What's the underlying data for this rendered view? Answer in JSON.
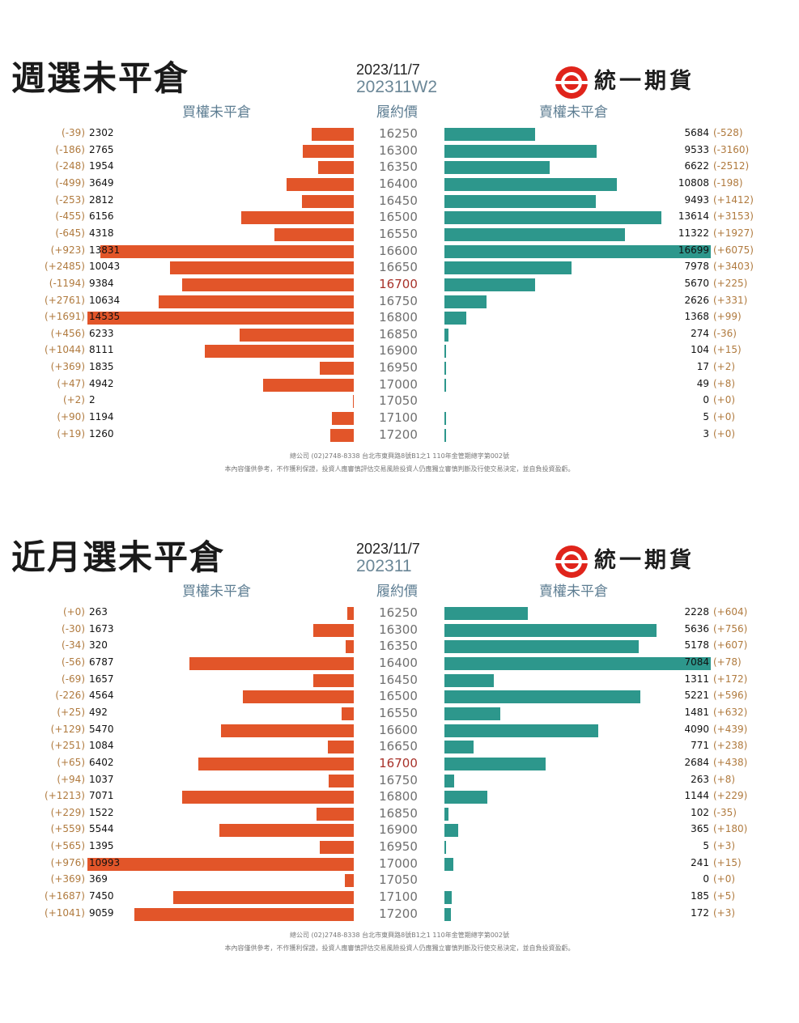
{
  "brand": {
    "name": "統一期貨",
    "accent": "#e0241b"
  },
  "colors": {
    "call_bar": "#e25529",
    "put_bar": "#2d978c",
    "delta_text": "#b07a3e",
    "atm_text": "#a8322a"
  },
  "footer": {
    "line1": "總公司 (02)2748-8338 台北市東興路8號B1之1 110年金管期總字第002號",
    "line2": "本內容僅供參考，不作獲利保證，投資人應審慎評估交易風險投資人仍應獨立審慎判斷及行使交易決定，並自負投資盈虧。"
  },
  "panels": [
    {
      "title": "週選未平倉",
      "date": "2023/11/7",
      "code": "202311W2",
      "headers": {
        "call": "買權未平倉",
        "strike": "履約價",
        "put": "賣權未平倉"
      },
      "atm_strike": "16700",
      "rows": [
        {
          "strike": "16250",
          "call_oi": 2302,
          "call_chg": "(-39)",
          "put_oi": 5684,
          "put_chg": "(-528)"
        },
        {
          "strike": "16300",
          "call_oi": 2765,
          "call_chg": "(-186)",
          "put_oi": 9533,
          "put_chg": "(-3160)"
        },
        {
          "strike": "16350",
          "call_oi": 1954,
          "call_chg": "(-248)",
          "put_oi": 6622,
          "put_chg": "(-2512)"
        },
        {
          "strike": "16400",
          "call_oi": 3649,
          "call_chg": "(-499)",
          "put_oi": 10808,
          "put_chg": "(-198)"
        },
        {
          "strike": "16450",
          "call_oi": 2812,
          "call_chg": "(-253)",
          "put_oi": 9493,
          "put_chg": "(+1412)"
        },
        {
          "strike": "16500",
          "call_oi": 6156,
          "call_chg": "(-455)",
          "put_oi": 13614,
          "put_chg": "(+3153)"
        },
        {
          "strike": "16550",
          "call_oi": 4318,
          "call_chg": "(-645)",
          "put_oi": 11322,
          "put_chg": "(+1927)"
        },
        {
          "strike": "16600",
          "call_oi": 13831,
          "call_chg": "(+923)",
          "put_oi": 16699,
          "put_chg": "(+6075)"
        },
        {
          "strike": "16650",
          "call_oi": 10043,
          "call_chg": "(+2485)",
          "put_oi": 7978,
          "put_chg": "(+3403)"
        },
        {
          "strike": "16700",
          "call_oi": 9384,
          "call_chg": "(-1194)",
          "put_oi": 5670,
          "put_chg": "(+225)"
        },
        {
          "strike": "16750",
          "call_oi": 10634,
          "call_chg": "(+2761)",
          "put_oi": 2626,
          "put_chg": "(+331)"
        },
        {
          "strike": "16800",
          "call_oi": 14535,
          "call_chg": "(+1691)",
          "put_oi": 1368,
          "put_chg": "(+99)"
        },
        {
          "strike": "16850",
          "call_oi": 6233,
          "call_chg": "(+456)",
          "put_oi": 274,
          "put_chg": "(-36)"
        },
        {
          "strike": "16900",
          "call_oi": 8111,
          "call_chg": "(+1044)",
          "put_oi": 104,
          "put_chg": "(+15)"
        },
        {
          "strike": "16950",
          "call_oi": 1835,
          "call_chg": "(+369)",
          "put_oi": 17,
          "put_chg": "(+2)"
        },
        {
          "strike": "17000",
          "call_oi": 4942,
          "call_chg": "(+47)",
          "put_oi": 49,
          "put_chg": "(+8)"
        },
        {
          "strike": "17050",
          "call_oi": 2,
          "call_chg": "(+2)",
          "put_oi": 0,
          "put_chg": "(+0)"
        },
        {
          "strike": "17100",
          "call_oi": 1194,
          "call_chg": "(+90)",
          "put_oi": 5,
          "put_chg": "(+0)"
        },
        {
          "strike": "17200",
          "call_oi": 1260,
          "call_chg": "(+19)",
          "put_oi": 3,
          "put_chg": "(+0)"
        }
      ]
    },
    {
      "title": "近月選未平倉",
      "date": "2023/11/7",
      "code": "202311",
      "headers": {
        "call": "買權未平倉",
        "strike": "履約價",
        "put": "賣權未平倉"
      },
      "atm_strike": "16700",
      "rows": [
        {
          "strike": "16250",
          "call_oi": 263,
          "call_chg": "(+0)",
          "put_oi": 2228,
          "put_chg": "(+604)"
        },
        {
          "strike": "16300",
          "call_oi": 1673,
          "call_chg": "(-30)",
          "put_oi": 5636,
          "put_chg": "(+756)"
        },
        {
          "strike": "16350",
          "call_oi": 320,
          "call_chg": "(-34)",
          "put_oi": 5178,
          "put_chg": "(+607)"
        },
        {
          "strike": "16400",
          "call_oi": 6787,
          "call_chg": "(-56)",
          "put_oi": 7084,
          "put_chg": "(+78)"
        },
        {
          "strike": "16450",
          "call_oi": 1657,
          "call_chg": "(-69)",
          "put_oi": 1311,
          "put_chg": "(+172)"
        },
        {
          "strike": "16500",
          "call_oi": 4564,
          "call_chg": "(-226)",
          "put_oi": 5221,
          "put_chg": "(+596)"
        },
        {
          "strike": "16550",
          "call_oi": 492,
          "call_chg": "(+25)",
          "put_oi": 1481,
          "put_chg": "(+632)"
        },
        {
          "strike": "16600",
          "call_oi": 5470,
          "call_chg": "(+129)",
          "put_oi": 4090,
          "put_chg": "(+439)"
        },
        {
          "strike": "16650",
          "call_oi": 1084,
          "call_chg": "(+251)",
          "put_oi": 771,
          "put_chg": "(+238)"
        },
        {
          "strike": "16700",
          "call_oi": 6402,
          "call_chg": "(+65)",
          "put_oi": 2684,
          "put_chg": "(+438)"
        },
        {
          "strike": "16750",
          "call_oi": 1037,
          "call_chg": "(+94)",
          "put_oi": 263,
          "put_chg": "(+8)"
        },
        {
          "strike": "16800",
          "call_oi": 7071,
          "call_chg": "(+1213)",
          "put_oi": 1144,
          "put_chg": "(+229)"
        },
        {
          "strike": "16850",
          "call_oi": 1522,
          "call_chg": "(+229)",
          "put_oi": 102,
          "put_chg": "(-35)"
        },
        {
          "strike": "16900",
          "call_oi": 5544,
          "call_chg": "(+559)",
          "put_oi": 365,
          "put_chg": "(+180)"
        },
        {
          "strike": "16950",
          "call_oi": 1395,
          "call_chg": "(+565)",
          "put_oi": 5,
          "put_chg": "(+3)"
        },
        {
          "strike": "17000",
          "call_oi": 10993,
          "call_chg": "(+976)",
          "put_oi": 241,
          "put_chg": "(+15)"
        },
        {
          "strike": "17050",
          "call_oi": 369,
          "call_chg": "(+369)",
          "put_oi": 0,
          "put_chg": "(+0)"
        },
        {
          "strike": "17100",
          "call_oi": 7450,
          "call_chg": "(+1687)",
          "put_oi": 185,
          "put_chg": "(+5)"
        },
        {
          "strike": "17200",
          "call_oi": 9059,
          "call_chg": "(+1041)",
          "put_oi": 172,
          "put_chg": "(+3)"
        }
      ]
    }
  ],
  "chart_data": [
    {
      "type": "bar",
      "title": "週選未平倉",
      "subtitle": "202311W2",
      "categories": [
        "16250",
        "16300",
        "16350",
        "16400",
        "16450",
        "16500",
        "16550",
        "16600",
        "16650",
        "16700",
        "16750",
        "16800",
        "16850",
        "16900",
        "16950",
        "17000",
        "17050",
        "17100",
        "17200"
      ],
      "series": [
        {
          "name": "買權未平倉",
          "values": [
            2302,
            2765,
            1954,
            3649,
            2812,
            6156,
            4318,
            13831,
            10043,
            9384,
            10634,
            14535,
            6233,
            8111,
            1835,
            4942,
            2,
            1194,
            1260
          ]
        },
        {
          "name": "賣權未平倉",
          "values": [
            5684,
            9533,
            6622,
            10808,
            9493,
            13614,
            11322,
            16699,
            7978,
            5670,
            2626,
            1368,
            274,
            104,
            17,
            49,
            0,
            5,
            3
          ]
        }
      ]
    },
    {
      "type": "bar",
      "title": "近月選未平倉",
      "subtitle": "202311",
      "categories": [
        "16250",
        "16300",
        "16350",
        "16400",
        "16450",
        "16500",
        "16550",
        "16600",
        "16650",
        "16700",
        "16750",
        "16800",
        "16850",
        "16900",
        "16950",
        "17000",
        "17050",
        "17100",
        "17200"
      ],
      "series": [
        {
          "name": "買權未平倉",
          "values": [
            263,
            1673,
            320,
            6787,
            1657,
            4564,
            492,
            5470,
            1084,
            6402,
            1037,
            7071,
            1522,
            5544,
            1395,
            10993,
            369,
            7450,
            9059
          ]
        },
        {
          "name": "賣權未平倉",
          "values": [
            2228,
            5636,
            5178,
            7084,
            1311,
            5221,
            1481,
            4090,
            771,
            2684,
            263,
            1144,
            102,
            365,
            5,
            241,
            0,
            185,
            172
          ]
        }
      ]
    }
  ]
}
